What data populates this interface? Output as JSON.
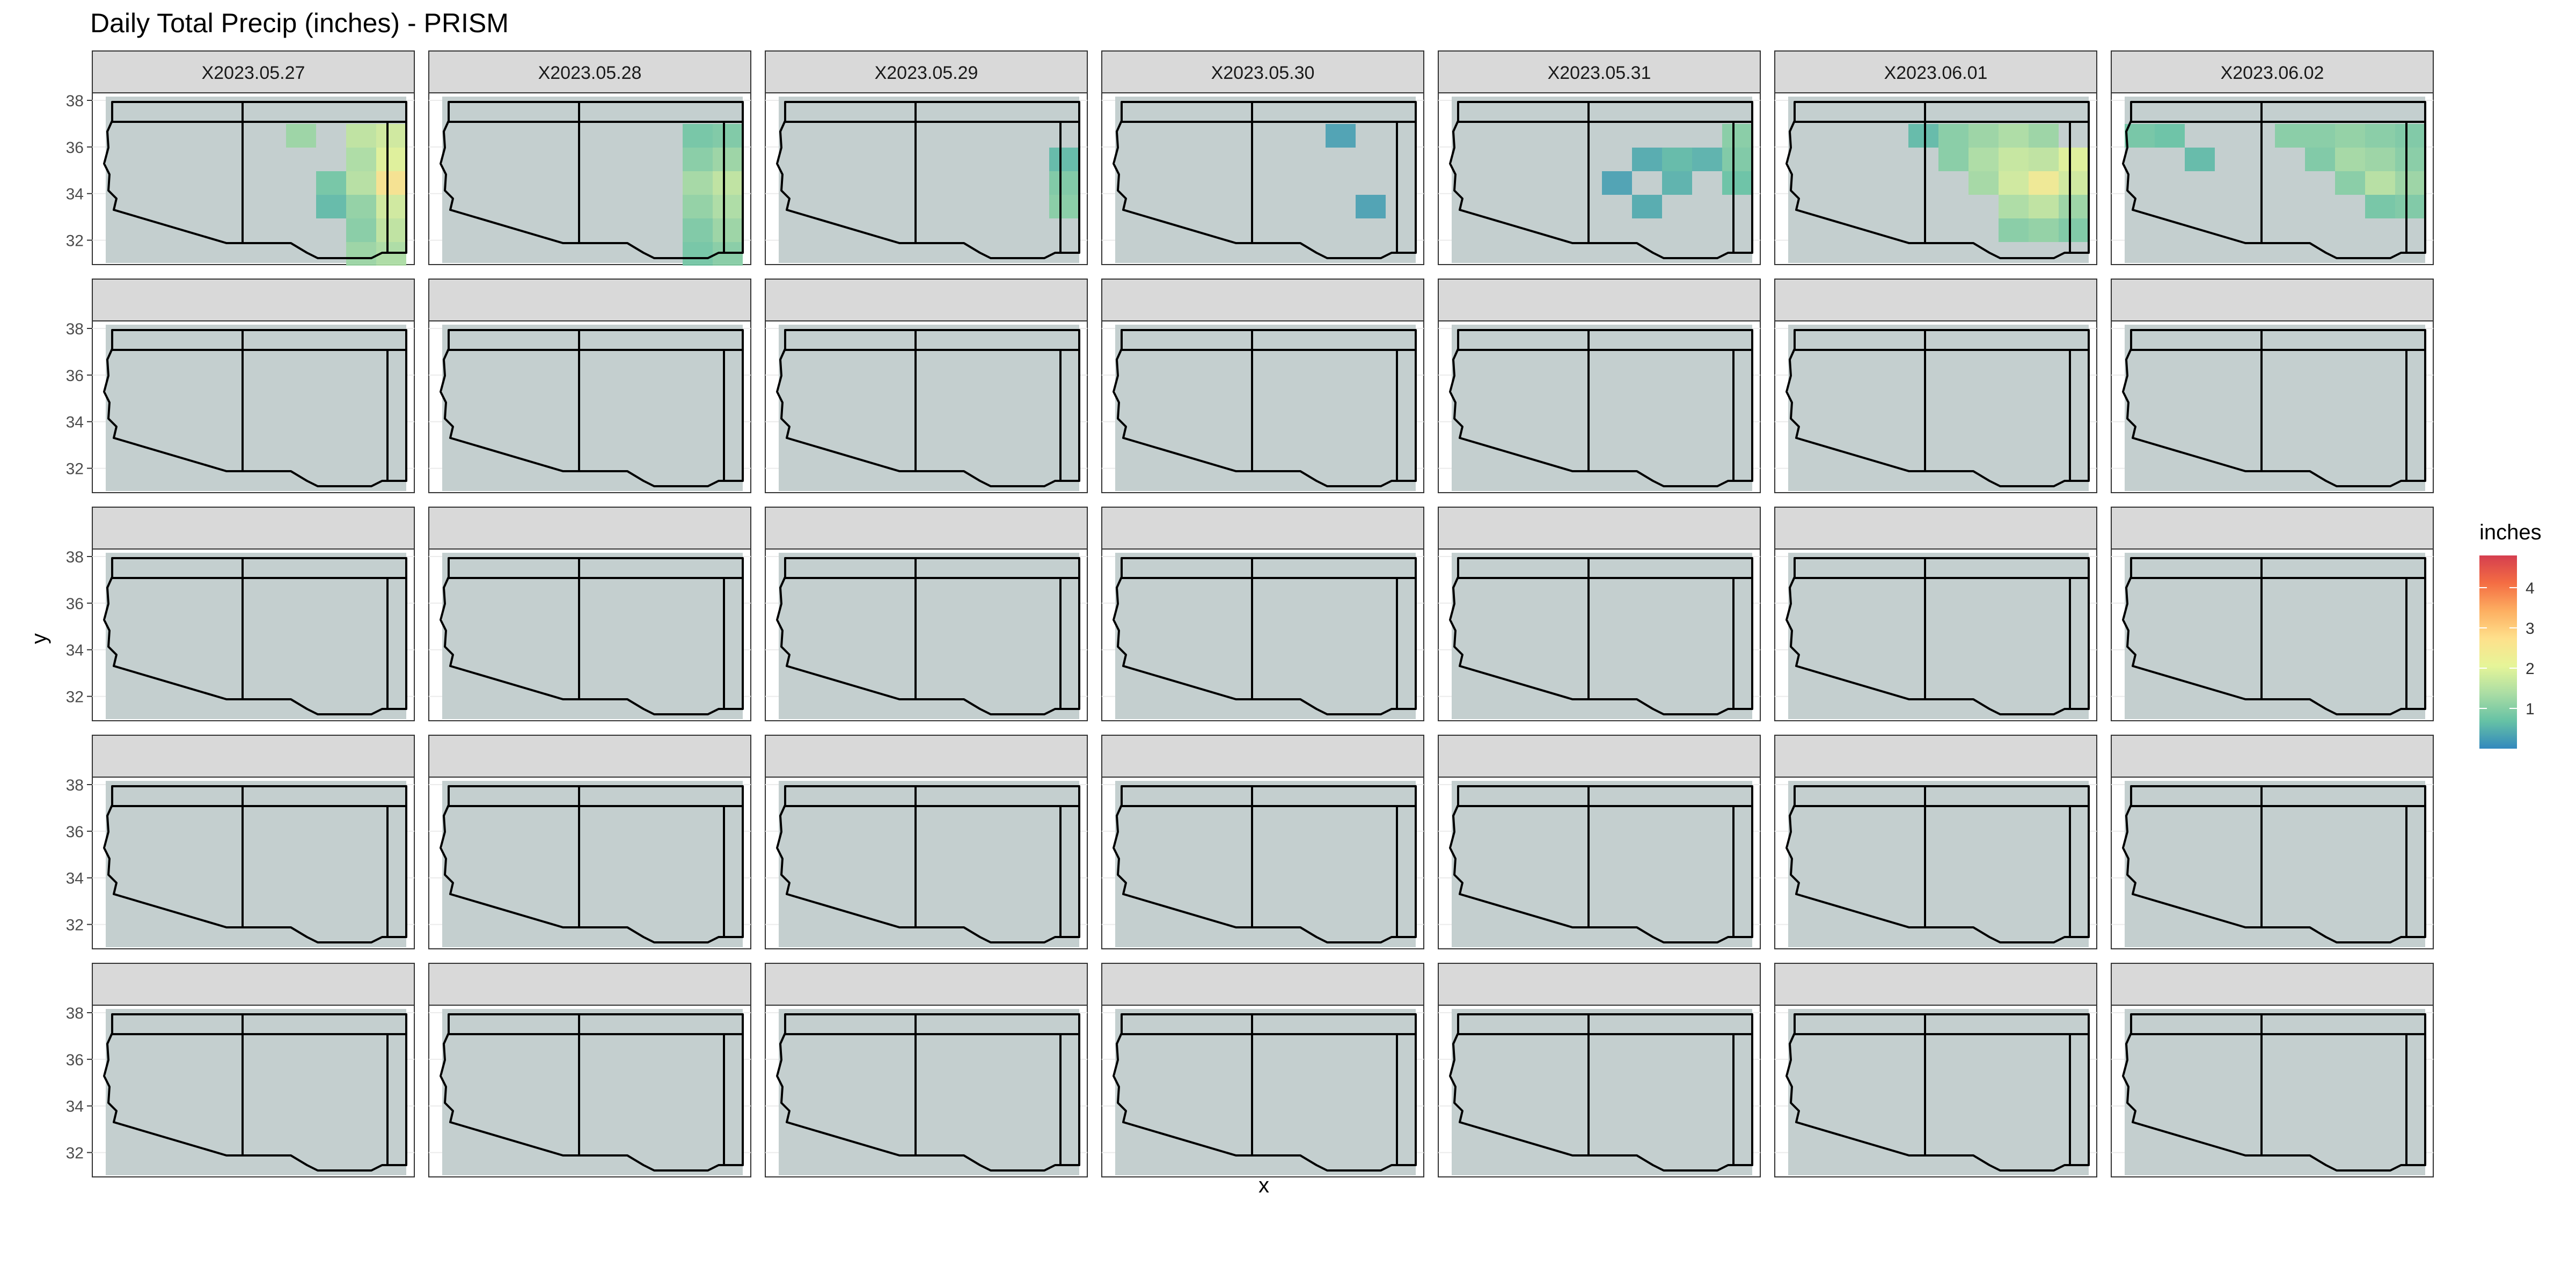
{
  "chart_data": {
    "type": "heatmap",
    "title": "Daily Total Precip (inches) - PRISM",
    "xlabel": "x",
    "ylabel": "y",
    "ylim": [
      31,
      38
    ],
    "y_ticks": [
      32,
      34,
      36,
      38
    ],
    "grid": true,
    "facet_layout": {
      "rows": 5,
      "cols": 7
    },
    "legend": {
      "title": "inches",
      "position": "right",
      "ticks": [
        1,
        2,
        3,
        4
      ],
      "range": [
        0,
        4.8
      ],
      "colors": [
        "#3288bd",
        "#66c2a5",
        "#abdda4",
        "#e6f598",
        "#fee08b",
        "#fdae61",
        "#f46d43",
        "#d53e4f"
      ]
    },
    "panel_background": "#c4cfcf",
    "strip_fill": "#d9d9d9",
    "panels": [
      {
        "label": "X2023.05.27",
        "cells": [
          [
            6,
            1,
            1.2
          ],
          [
            8,
            1,
            1.6
          ],
          [
            9,
            1,
            1.8
          ],
          [
            8,
            2,
            1.4
          ],
          [
            9,
            2,
            2.0
          ],
          [
            7,
            3,
            0.8
          ],
          [
            8,
            3,
            1.5
          ],
          [
            9,
            3,
            2.6
          ],
          [
            7,
            4,
            0.6
          ],
          [
            8,
            4,
            1.1
          ],
          [
            9,
            4,
            1.8
          ],
          [
            8,
            5,
            1.0
          ],
          [
            9,
            5,
            1.6
          ],
          [
            8,
            6,
            1.2
          ],
          [
            9,
            6,
            1.4
          ]
        ]
      },
      {
        "label": "X2023.05.28",
        "cells": [
          [
            8,
            1,
            0.8
          ],
          [
            9,
            1,
            0.9
          ],
          [
            8,
            2,
            1.0
          ],
          [
            9,
            2,
            1.2
          ],
          [
            8,
            3,
            1.3
          ],
          [
            9,
            3,
            1.6
          ],
          [
            8,
            4,
            1.1
          ],
          [
            9,
            4,
            1.4
          ],
          [
            8,
            5,
            0.9
          ],
          [
            9,
            5,
            1.2
          ],
          [
            8,
            6,
            0.8
          ],
          [
            9,
            6,
            1.0
          ]
        ]
      },
      {
        "label": "X2023.05.29",
        "cells": [
          [
            9,
            2,
            0.6
          ],
          [
            9,
            3,
            0.9
          ],
          [
            9,
            4,
            1.0
          ]
        ]
      },
      {
        "label": "X2023.05.30",
        "cells": [
          [
            7,
            1,
            0.3
          ],
          [
            8,
            4,
            0.3
          ]
        ]
      },
      {
        "label": "X2023.05.31",
        "cells": [
          [
            9,
            1,
            1.0
          ],
          [
            6,
            2,
            0.4
          ],
          [
            7,
            2,
            0.6
          ],
          [
            8,
            2,
            0.5
          ],
          [
            9,
            2,
            0.9
          ],
          [
            5,
            3,
            0.3
          ],
          [
            7,
            3,
            0.5
          ],
          [
            9,
            3,
            0.7
          ],
          [
            6,
            4,
            0.4
          ]
        ]
      },
      {
        "label": "X2023.06.01",
        "cells": [
          [
            4,
            1,
            0.6
          ],
          [
            5,
            1,
            1.0
          ],
          [
            6,
            1,
            1.2
          ],
          [
            7,
            1,
            1.4
          ],
          [
            8,
            1,
            1.2
          ],
          [
            5,
            2,
            1.0
          ],
          [
            6,
            2,
            1.4
          ],
          [
            7,
            2,
            1.7
          ],
          [
            8,
            2,
            1.6
          ],
          [
            9,
            2,
            2.0
          ],
          [
            6,
            3,
            1.3
          ],
          [
            7,
            3,
            1.8
          ],
          [
            8,
            3,
            2.4
          ],
          [
            9,
            3,
            1.8
          ],
          [
            7,
            4,
            1.4
          ],
          [
            8,
            4,
            1.6
          ],
          [
            9,
            4,
            1.2
          ],
          [
            7,
            5,
            1.0
          ],
          [
            8,
            5,
            1.1
          ],
          [
            9,
            5,
            0.9
          ]
        ]
      },
      {
        "label": "X2023.06.02",
        "cells": [
          [
            0,
            1,
            0.8
          ],
          [
            1,
            1,
            0.7
          ],
          [
            5,
            1,
            1.0
          ],
          [
            6,
            1,
            1.0
          ],
          [
            7,
            1,
            1.1
          ],
          [
            8,
            1,
            1.0
          ],
          [
            9,
            1,
            0.9
          ],
          [
            2,
            2,
            0.6
          ],
          [
            6,
            2,
            0.9
          ],
          [
            7,
            2,
            1.3
          ],
          [
            8,
            2,
            1.2
          ],
          [
            9,
            2,
            1.0
          ],
          [
            7,
            3,
            1.0
          ],
          [
            8,
            3,
            1.5
          ],
          [
            9,
            3,
            1.2
          ],
          [
            8,
            4,
            0.8
          ],
          [
            9,
            4,
            0.9
          ]
        ]
      }
    ]
  }
}
